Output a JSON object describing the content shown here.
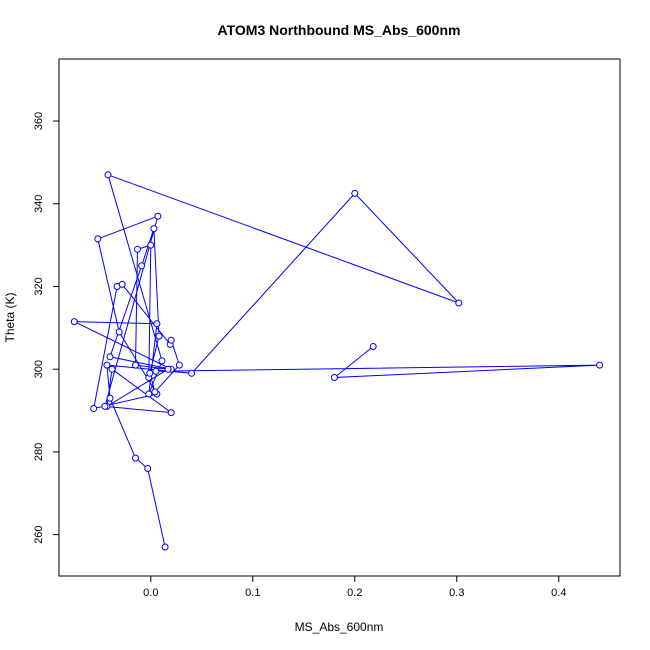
{
  "chart_data": {
    "type": "line",
    "title": "ATOM3 Northbound MS_Abs_600nm",
    "xlabel": "MS_Abs_600nm",
    "ylabel": "Theta (K)",
    "xlim": [
      -0.09,
      0.46
    ],
    "ylim": [
      250,
      375
    ],
    "x_ticks": [
      0.0,
      0.1,
      0.2,
      0.3,
      0.4
    ],
    "x_tick_labels": [
      "0.0",
      "0.1",
      "0.2",
      "0.3",
      "0.4"
    ],
    "y_ticks": [
      260,
      280,
      300,
      320,
      340,
      360
    ],
    "y_tick_labels": [
      "260",
      "280",
      "300",
      "320",
      "340",
      "360"
    ],
    "markers": "open-circle",
    "grid": false,
    "legend": "none",
    "color": "#0000ff",
    "series": [
      {
        "x": [
          0.014,
          -0.003,
          -0.015,
          -0.04,
          -0.043,
          0.04,
          0.2,
          0.302,
          -0.042,
          0.011,
          -0.002,
          0.006,
          -0.075,
          0.02,
          -0.04,
          -0.009,
          0.003,
          0.008,
          -0.002,
          0.0,
          -0.013,
          -0.015,
          0.017,
          -0.043,
          -0.038,
          0.02,
          -0.045,
          0.007,
          -0.052,
          -0.031,
          0.006,
          -0.056,
          -0.033,
          -0.028,
          0.019,
          0.02,
          0.028,
          0.004,
          -0.001,
          0.005,
          0.44,
          0.18,
          0.218
        ],
        "y": [
          257,
          276,
          278.5,
          293,
          301,
          299,
          342.5,
          316,
          347,
          302,
          294,
          311,
          311.5,
          300,
          303,
          325,
          334,
          308,
          298,
          330,
          329,
          301,
          300,
          291,
          300,
          289.5,
          291,
          337,
          331.5,
          309,
          294,
          290.5,
          320,
          320.5,
          306,
          307,
          301,
          294.5,
          299,
          299.5,
          301,
          298,
          305.5
        ]
      }
    ]
  }
}
